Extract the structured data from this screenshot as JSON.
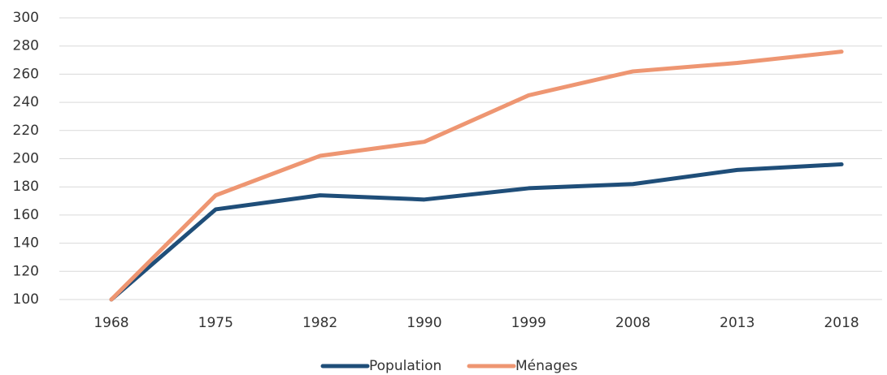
{
  "chart_data": {
    "type": "line",
    "categories": [
      "1968",
      "1975",
      "1982",
      "1990",
      "1999",
      "2008",
      "2013",
      "2018"
    ],
    "series": [
      {
        "name": "Population",
        "color": "#1f4e79",
        "values": [
          100,
          164,
          174,
          171,
          179,
          182,
          192,
          196
        ]
      },
      {
        "name": "Ménages",
        "color": "#ee9672",
        "values": [
          100,
          174,
          202,
          212,
          245,
          262,
          268,
          276
        ]
      }
    ],
    "ylim": [
      100,
      300
    ],
    "yticks": [
      100,
      120,
      140,
      160,
      180,
      200,
      220,
      240,
      260,
      280,
      300
    ],
    "grid": true,
    "legend": "bottom"
  }
}
